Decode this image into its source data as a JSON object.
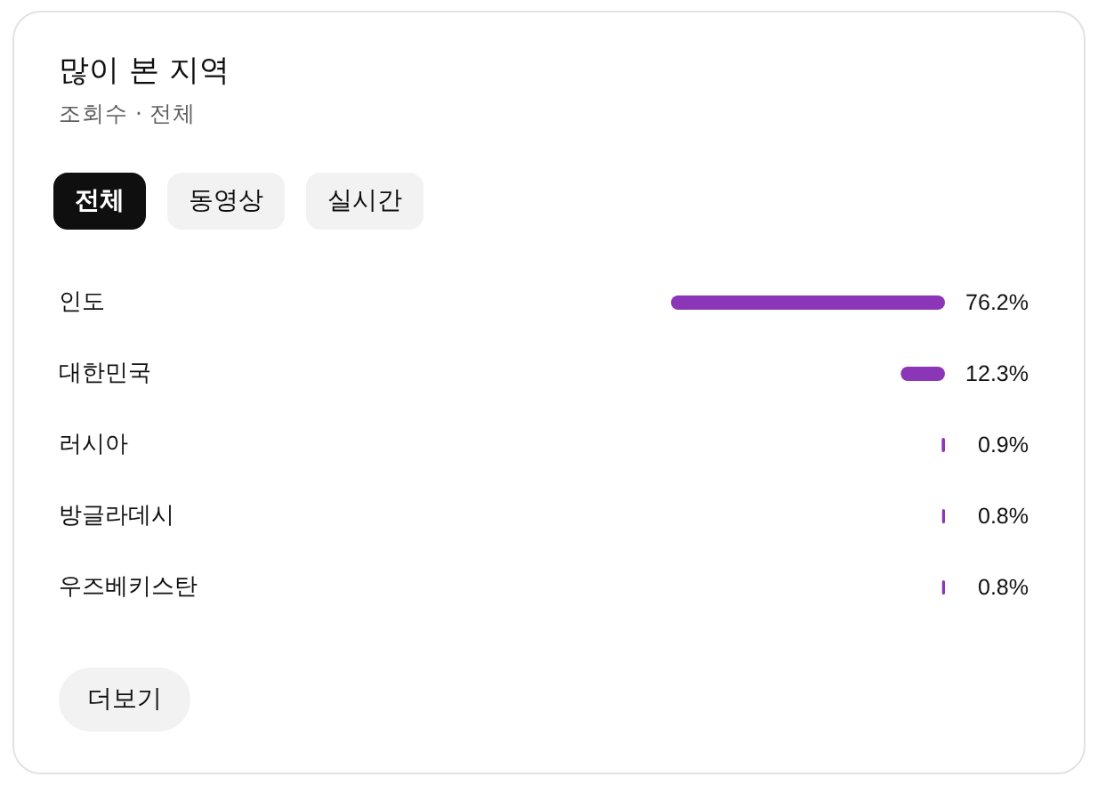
{
  "chart_data": {
    "type": "bar",
    "orientation": "horizontal",
    "title": "많이 본 지역",
    "subtitle": "조회수 · 전체",
    "categories": [
      "인도",
      "대한민국",
      "러시아",
      "방글라데시",
      "우즈베키스탄"
    ],
    "values": [
      76.2,
      12.3,
      0.9,
      0.8,
      0.8
    ],
    "value_labels": [
      "76.2%",
      "12.3%",
      "0.9%",
      "0.8%",
      "0.8%"
    ],
    "color": "#8b36b7",
    "tick_labels": "y",
    "annotations": [
      "전체",
      "동영상",
      "실시간",
      "더보기"
    ]
  }
}
